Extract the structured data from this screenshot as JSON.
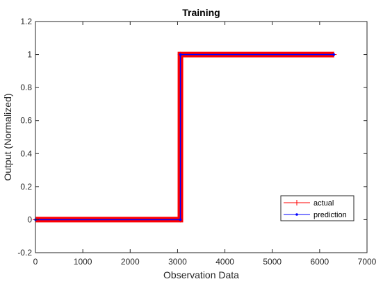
{
  "chart_data": {
    "type": "line",
    "title": "Training",
    "xlabel": "Observation Data",
    "ylabel": "Output (Normalized)",
    "xlim": [
      0,
      7000
    ],
    "ylim": [
      -0.2,
      1.2
    ],
    "x_ticks": [
      0,
      1000,
      2000,
      3000,
      4000,
      5000,
      6000,
      7000
    ],
    "y_ticks": [
      -0.2,
      0,
      0.2,
      0.4,
      0.6,
      0.8,
      1,
      1.2
    ],
    "x_tick_labels": [
      "0",
      "1000",
      "2000",
      "3000",
      "4000",
      "5000",
      "6000",
      "7000"
    ],
    "y_tick_labels": [
      "-0.2",
      "0",
      "0.2",
      "0.4",
      "0.6",
      "0.8",
      "1",
      "1.2"
    ],
    "grid": false,
    "legend_position": "bottom-right",
    "series": [
      {
        "name": "actual",
        "color": "#ff0000",
        "marker": "+",
        "x": [
          1,
          3060,
          3061,
          6300
        ],
        "y": [
          0,
          0,
          1,
          1
        ]
      },
      {
        "name": "prediction",
        "color": "#0000ff",
        "marker": ".",
        "x": [
          1,
          3060,
          3061,
          6300
        ],
        "y": [
          0,
          0,
          1,
          1
        ]
      }
    ]
  }
}
